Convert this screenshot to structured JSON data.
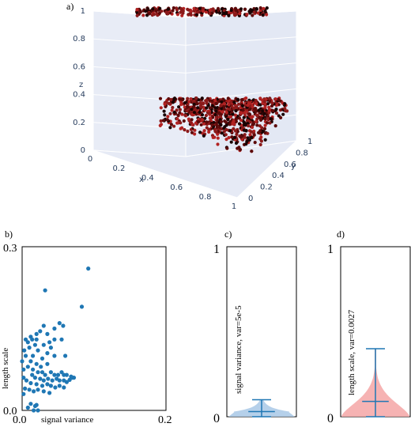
{
  "chart_data": [
    {
      "panel_label": "a)",
      "type": "scatter",
      "xlabel": "x",
      "ylabel": "y",
      "zlabel": "z",
      "x_ticks": [
        "0",
        "0.2",
        "0.4",
        "0.6",
        "0.8",
        "1"
      ],
      "y_ticks": [
        "0",
        "0.2",
        "0.4",
        "0.6",
        "0.8",
        "1"
      ],
      "z_ticks": [
        "0",
        "0.2",
        "0.4",
        "0.6",
        "0.8",
        "1"
      ],
      "xlim": [
        0,
        1
      ],
      "ylim": [
        0,
        1
      ],
      "zlim": [
        0,
        1
      ],
      "layers": [
        {
          "z_range": [
            0.98,
            1.0
          ],
          "density": "sparse"
        },
        {
          "z_range": [
            0.0,
            0.45
          ],
          "density": "dense"
        }
      ],
      "marker_colors": [
        "#1a0303",
        "#5c0a0a",
        "#8b1a1a",
        "#b22222"
      ]
    },
    {
      "panel_label": "b)",
      "type": "scatter",
      "xlabel": "signal variance",
      "ylabel": "length scale",
      "xlim": [
        0,
        0.2
      ],
      "ylim": [
        0,
        0.3
      ],
      "x_ticks": [
        "0.0",
        "0.2"
      ],
      "y_ticks": [
        "0.0",
        "0.3"
      ],
      "color": "#1f77b4",
      "points": [
        [
          0.092,
          0.26
        ],
        [
          0.083,
          0.19
        ],
        [
          0.032,
          0.22
        ],
        [
          0.052,
          0.16
        ],
        [
          0.057,
          0.155
        ],
        [
          0.045,
          0.15
        ],
        [
          0.03,
          0.155
        ],
        [
          0.025,
          0.145
        ],
        [
          0.02,
          0.14
        ],
        [
          0.035,
          0.14
        ],
        [
          0.012,
          0.135
        ],
        [
          0.005,
          0.13
        ],
        [
          0.008,
          0.125
        ],
        [
          0.014,
          0.13
        ],
        [
          0.02,
          0.13
        ],
        [
          0.038,
          0.125
        ],
        [
          0.045,
          0.13
        ],
        [
          0.055,
          0.13
        ],
        [
          0.04,
          0.115
        ],
        [
          0.03,
          0.12
        ],
        [
          0.018,
          0.12
        ],
        [
          0.01,
          0.115
        ],
        [
          0.003,
          0.11
        ],
        [
          0.022,
          0.11
        ],
        [
          0.035,
          0.105
        ],
        [
          0.045,
          0.1
        ],
        [
          0.06,
          0.1
        ],
        [
          0.015,
          0.1
        ],
        [
          0.005,
          0.1
        ],
        [
          0.028,
          0.095
        ],
        [
          0.012,
          0.09
        ],
        [
          0.0,
          0.09
        ],
        [
          0.02,
          0.085
        ],
        [
          0.035,
          0.085
        ],
        [
          0.008,
          0.08
        ],
        [
          0.002,
          0.075
        ],
        [
          0.015,
          0.075
        ],
        [
          0.022,
          0.07
        ],
        [
          0.028,
          0.07
        ],
        [
          0.032,
          0.065
        ],
        [
          0.04,
          0.07
        ],
        [
          0.045,
          0.065
        ],
        [
          0.05,
          0.065
        ],
        [
          0.055,
          0.07
        ],
        [
          0.058,
          0.065
        ],
        [
          0.062,
          0.065
        ],
        [
          0.068,
          0.062
        ],
        [
          0.072,
          0.06
        ],
        [
          0.018,
          0.06
        ],
        [
          0.025,
          0.058
        ],
        [
          0.03,
          0.055
        ],
        [
          0.036,
          0.058
        ],
        [
          0.042,
          0.055
        ],
        [
          0.048,
          0.058
        ],
        [
          0.052,
          0.055
        ],
        [
          0.058,
          0.055
        ],
        [
          0.062,
          0.052
        ],
        [
          0.066,
          0.056
        ],
        [
          0.07,
          0.06
        ],
        [
          0.006,
          0.055
        ],
        [
          0.012,
          0.05
        ],
        [
          0.02,
          0.048
        ],
        [
          0.028,
          0.045
        ],
        [
          0.035,
          0.048
        ],
        [
          0.04,
          0.045
        ],
        [
          0.046,
          0.042
        ],
        [
          0.052,
          0.045
        ],
        [
          0.058,
          0.042
        ],
        [
          0.004,
          0.04
        ],
        [
          0.01,
          0.038
        ],
        [
          0.016,
          0.035
        ],
        [
          0.022,
          0.038
        ],
        [
          0.03,
          0.035
        ],
        [
          0.038,
          0.032
        ],
        [
          0.002,
          0.03
        ],
        [
          0.012,
          0.012
        ],
        [
          0.018,
          0.008
        ],
        [
          0.02,
          0.01
        ],
        [
          0.008,
          0.005
        ],
        [
          0.016,
          0.0
        ],
        [
          0.022,
          0.0
        ],
        [
          0.002,
          0.06
        ],
        [
          0.014,
          0.065
        ],
        [
          0.026,
          0.08
        ]
      ]
    },
    {
      "panel_label": "c)",
      "type": "violin",
      "ylim": [
        0,
        1
      ],
      "y_ticks": [
        "0",
        "1"
      ],
      "annotation": "signal variance, var=5e-5",
      "fill": "#a8c8e6",
      "line": "#1f77b4",
      "min": 0.0,
      "max": 0.1,
      "median": 0.03
    },
    {
      "panel_label": "d)",
      "type": "violin",
      "ylim": [
        0,
        1
      ],
      "y_ticks": [
        "0",
        "1"
      ],
      "annotation": "length scale, var=0.0027",
      "fill": "#f4a6a6",
      "line": "#1f77b4",
      "min": 0.0,
      "max": 0.4,
      "median": 0.09
    }
  ]
}
